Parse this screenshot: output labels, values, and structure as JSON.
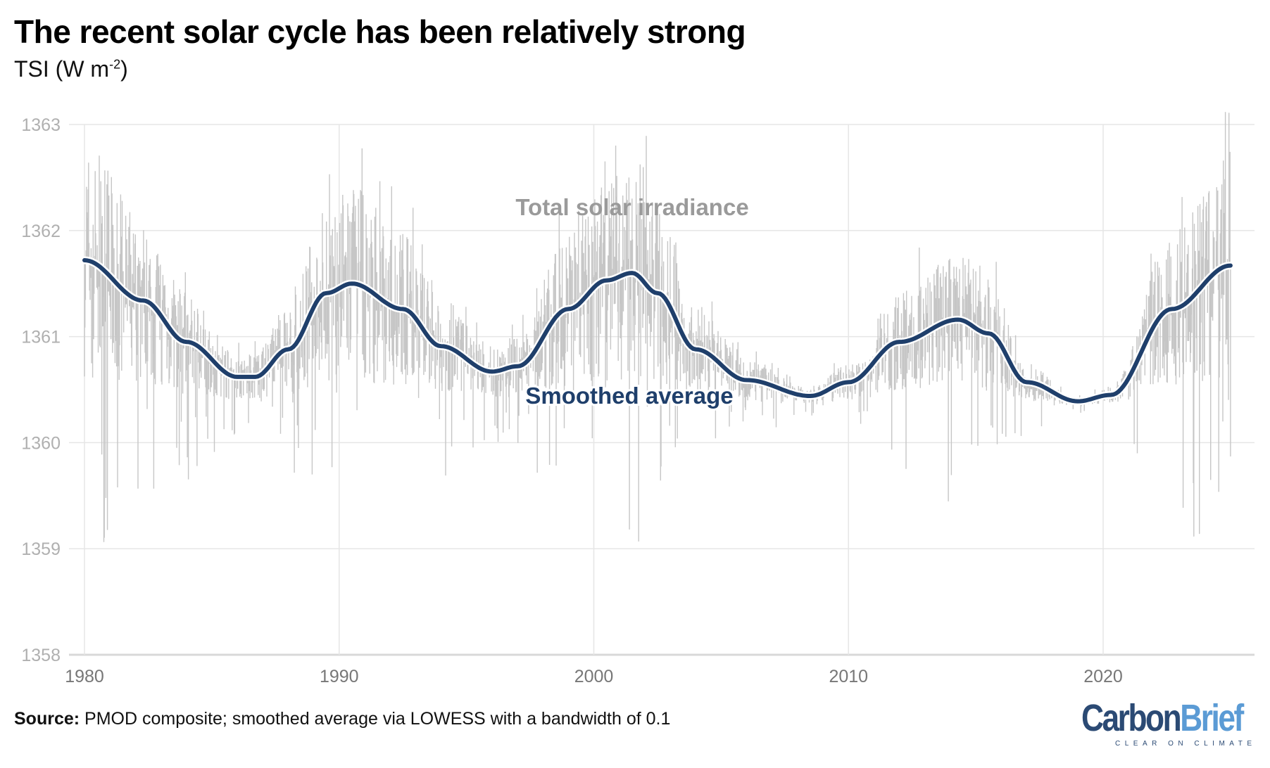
{
  "chart_data": {
    "type": "line",
    "title": "The recent solar cycle has been relatively strong",
    "subtitle_main": "TSI (W m",
    "subtitle_sup": "-2",
    "subtitle_end": ")",
    "xlim": [
      1980,
      2025
    ],
    "ylim": [
      1358,
      1363
    ],
    "x_ticks": [
      1980,
      1990,
      2000,
      2010,
      2020
    ],
    "y_ticks": [
      1358,
      1359,
      1360,
      1361,
      1362,
      1363
    ],
    "grid": true,
    "annotations": [
      "Total solar irradiance",
      "Smoothed average"
    ],
    "series": [
      {
        "name": "Total solar irradiance",
        "color": "#c6c6c6",
        "style": "daily values (thin vertical noise around smoothed average)"
      },
      {
        "name": "Smoothed average",
        "color": "#1f3f6b",
        "x": [
          1980,
          1982.3,
          1984,
          1986,
          1986.7,
          1988,
          1989.5,
          1990.5,
          1992.5,
          1994,
          1996,
          1997,
          1999,
          2000.5,
          2001.5,
          2002.5,
          2004,
          2006,
          2008.5,
          2010,
          2012,
          2014.3,
          2015.5,
          2017,
          2019,
          2020.3,
          2022.7,
          2025
        ],
        "y": [
          1361.72,
          1361.34,
          1360.95,
          1360.62,
          1360.62,
          1360.88,
          1361.41,
          1361.5,
          1361.26,
          1360.91,
          1360.67,
          1360.72,
          1361.26,
          1361.53,
          1361.6,
          1361.41,
          1360.88,
          1360.59,
          1360.44,
          1360.57,
          1360.95,
          1361.16,
          1361.03,
          1360.57,
          1360.39,
          1360.45,
          1361.26,
          1361.67
        ]
      }
    ]
  },
  "footer": {
    "source_label": "Source:",
    "source_text": " PMOD composite; smoothed average via LOWESS with a bandwidth of 0.1"
  },
  "logo": {
    "carbon": "Carbon",
    "brief": "Brief",
    "tagline": "CLEAR ON CLIMATE"
  }
}
